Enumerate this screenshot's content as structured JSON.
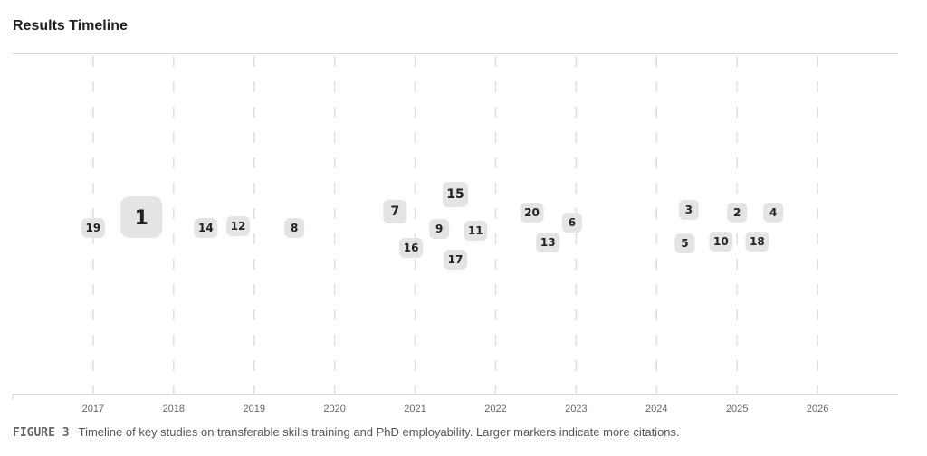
{
  "title": "Results Timeline",
  "caption": {
    "label": "FIGURE 3",
    "text": "Timeline of key studies on transferable skills training and PhD employability. Larger markers indicate more citations."
  },
  "chart_data": {
    "type": "scatter",
    "xlim": [
      2016,
      2027
    ],
    "x_ticks": [
      "2017",
      "2018",
      "2019",
      "2020",
      "2021",
      "2022",
      "2023",
      "2024",
      "2025",
      "2026"
    ],
    "grid": "vertical dashed",
    "points": [
      {
        "label": "19",
        "x": 2017.0
      },
      {
        "label": "1",
        "x": 2017.6
      },
      {
        "label": "14",
        "x": 2018.4
      },
      {
        "label": "12",
        "x": 2018.8
      },
      {
        "label": "8",
        "x": 2019.5
      },
      {
        "label": "7",
        "x": 2020.75
      },
      {
        "label": "16",
        "x": 2020.95
      },
      {
        "label": "9",
        "x": 2021.3
      },
      {
        "label": "15",
        "x": 2021.5
      },
      {
        "label": "17",
        "x": 2021.5
      },
      {
        "label": "11",
        "x": 2021.75
      },
      {
        "label": "20",
        "x": 2022.45
      },
      {
        "label": "13",
        "x": 2022.65
      },
      {
        "label": "6",
        "x": 2022.95
      },
      {
        "label": "5",
        "x": 2024.35
      },
      {
        "label": "3",
        "x": 2024.4
      },
      {
        "label": "10",
        "x": 2024.8
      },
      {
        "label": "2",
        "x": 2025.0
      },
      {
        "label": "18",
        "x": 2025.25
      },
      {
        "label": "4",
        "x": 2025.45
      }
    ],
    "marker_color": "#e4e4e6"
  }
}
